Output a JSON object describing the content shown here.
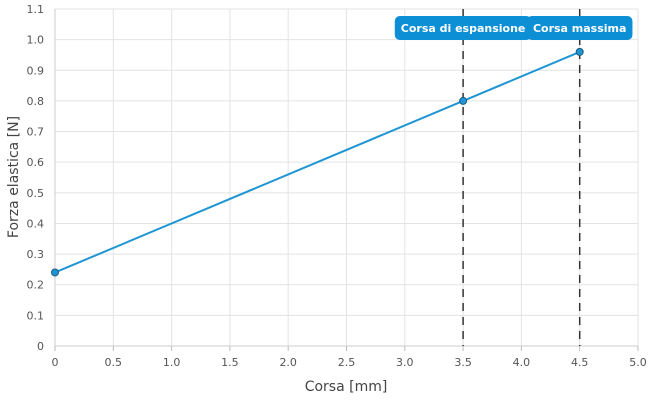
{
  "chart_data": {
    "type": "line",
    "xlabel": "Corsa [mm]",
    "ylabel": "Forza elastica [N]",
    "xlim": [
      0,
      5.0
    ],
    "ylim": [
      0,
      1.1
    ],
    "x_ticks": [
      "0",
      "0.5",
      "1.0",
      "1.5",
      "2.0",
      "2.5",
      "3.0",
      "3.5",
      "4.0",
      "4.5",
      "5.0"
    ],
    "y_ticks": [
      "0",
      "0.1",
      "0.2",
      "0.3",
      "0.4",
      "0.5",
      "0.6",
      "0.7",
      "0.8",
      "0.9",
      "1.0",
      "1.1"
    ],
    "grid": true,
    "series": [
      {
        "color": "#1f96d3",
        "points": [
          [
            0,
            0.24
          ],
          [
            3.5,
            0.8
          ],
          [
            4.5,
            0.96
          ]
        ]
      }
    ],
    "annotations": [
      {
        "x": 3.5,
        "label": "Corsa di espansione",
        "color": "#0d8fd6"
      },
      {
        "x": 4.5,
        "label": "Corsa massima",
        "color": "#0d8fd6"
      }
    ]
  }
}
